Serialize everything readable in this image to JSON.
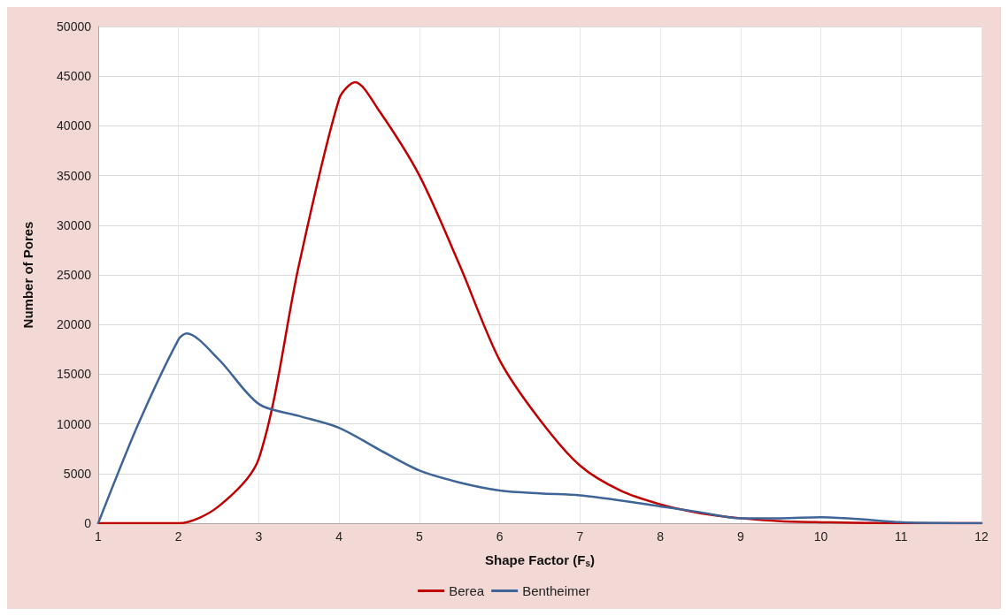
{
  "chart_data": {
    "type": "line",
    "xlabel": "Shape Factor (F$_{s}$)",
    "ylabel": "Number of Pores",
    "xlim": [
      1,
      12
    ],
    "xticks": [
      1,
      2,
      3,
      4,
      5,
      6,
      7,
      8,
      9,
      10,
      11,
      12
    ],
    "ylim": [
      0,
      50000
    ],
    "yticks": [
      0,
      5000,
      10000,
      15000,
      20000,
      25000,
      30000,
      35000,
      40000,
      45000,
      50000
    ],
    "grid": true,
    "legend": "bottom",
    "marker": "none",
    "line_style": "solid",
    "series": [
      {
        "name": "Berea",
        "color": "#c00000",
        "x": [
          1,
          2,
          2.5,
          3,
          3.5,
          4,
          4.2,
          4.5,
          5,
          5.5,
          6,
          6.5,
          7,
          7.5,
          8,
          8.5,
          9,
          9.5,
          10,
          11,
          12
        ],
        "values": [
          0,
          0,
          1700,
          6500,
          26000,
          42700,
          44400,
          41500,
          35000,
          26000,
          16400,
          10400,
          5800,
          3300,
          1900,
          1000,
          500,
          200,
          100,
          0,
          0
        ]
      },
      {
        "name": "Bentheimer",
        "color": "#3f6497",
        "x": [
          1,
          1.5,
          2,
          2.1,
          2.5,
          3,
          3.5,
          4,
          4.5,
          5,
          5.5,
          6,
          6.5,
          7,
          7.5,
          8,
          8.5,
          9,
          9.5,
          10,
          10.5,
          11,
          12
        ],
        "values": [
          0,
          10000,
          18500,
          19100,
          16500,
          12000,
          10800,
          9600,
          7400,
          5300,
          4100,
          3300,
          3000,
          2800,
          2300,
          1700,
          1100,
          500,
          500,
          600,
          400,
          100,
          0
        ]
      }
    ]
  }
}
